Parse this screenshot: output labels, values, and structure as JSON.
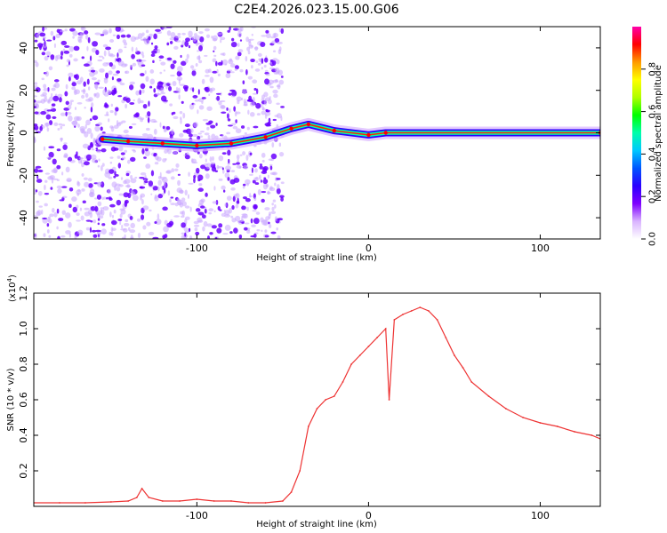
{
  "chart_data": [
    {
      "type": "heatmap",
      "title": "C2E4.2026.023.15.00.G06",
      "xlabel": "Height of straight line (km)",
      "ylabel": "Frequency (Hz)",
      "xlim": [
        -195,
        135
      ],
      "ylim": [
        -50,
        50
      ],
      "x_ticks": [
        "-100",
        "0",
        "100"
      ],
      "y_ticks": [
        "-40",
        "-20",
        "0",
        "20",
        "40"
      ],
      "colorbar": {
        "label": "Normalized spectral amplitude",
        "range": [
          0,
          1
        ],
        "ticks": [
          "0.0",
          "0.2",
          "0.4",
          "0.6",
          "0.8"
        ],
        "colors": [
          "#ffffff",
          "#d9b3ff",
          "#7f00ff",
          "#2a00ff",
          "#0055ff",
          "#00c8ff",
          "#00ffaa",
          "#00ff00",
          "#b0ff00",
          "#ffff00",
          "#ff9900",
          "#ff0000",
          "#ff00aa"
        ]
      },
      "ridge": {
        "description_points": [
          {
            "x": -155,
            "y": -3
          },
          {
            "x": -140,
            "y": -4
          },
          {
            "x": -120,
            "y": -5
          },
          {
            "x": -100,
            "y": -6
          },
          {
            "x": -80,
            "y": -5
          },
          {
            "x": -60,
            "y": -2
          },
          {
            "x": -45,
            "y": 2
          },
          {
            "x": -35,
            "y": 4
          },
          {
            "x": -20,
            "y": 1
          },
          {
            "x": 0,
            "y": -1
          },
          {
            "x": 10,
            "y": 0
          },
          {
            "x": 135,
            "y": 0
          }
        ]
      }
    },
    {
      "type": "line",
      "xlabel": "Height of straight line (km)",
      "ylabel": "SNR (10 * v/v)",
      "y_scale_note": "(x10",
      "y_scale_exp": "4",
      "xlim": [
        -195,
        135
      ],
      "ylim": [
        0,
        1.2
      ],
      "x_ticks": [
        "-100",
        "0",
        "100"
      ],
      "y_ticks": [
        "0.2",
        "0.4",
        "0.6",
        "0.8",
        "1.0",
        "1.2"
      ],
      "series": [
        {
          "color": "#ee3333",
          "x": [
            -195,
            -180,
            -165,
            -150,
            -140,
            -135,
            -132,
            -128,
            -120,
            -110,
            -100,
            -90,
            -80,
            -70,
            -60,
            -50,
            -45,
            -40,
            -35,
            -30,
            -25,
            -20,
            -15,
            -10,
            -5,
            0,
            5,
            10,
            12,
            15,
            20,
            25,
            30,
            35,
            40,
            45,
            50,
            55,
            60,
            70,
            80,
            90,
            100,
            110,
            120,
            130,
            135
          ],
          "y": [
            0.02,
            0.02,
            0.02,
            0.025,
            0.03,
            0.05,
            0.1,
            0.05,
            0.03,
            0.03,
            0.04,
            0.03,
            0.03,
            0.02,
            0.02,
            0.03,
            0.08,
            0.2,
            0.45,
            0.55,
            0.6,
            0.62,
            0.7,
            0.8,
            0.85,
            0.9,
            0.95,
            1.0,
            0.6,
            1.05,
            1.08,
            1.1,
            1.12,
            1.1,
            1.05,
            0.95,
            0.85,
            0.78,
            0.7,
            0.62,
            0.55,
            0.5,
            0.47,
            0.45,
            0.42,
            0.4,
            0.38
          ]
        }
      ]
    }
  ]
}
